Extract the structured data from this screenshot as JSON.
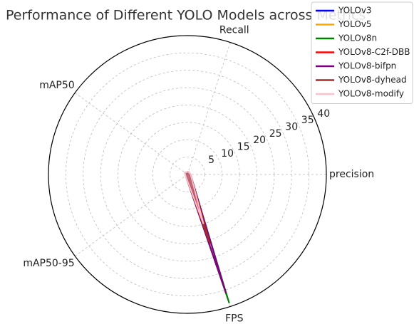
{
  "chart_data": {
    "type": "radar",
    "title": "Performance of Different YOLO Models across Metrics",
    "categories": [
      "precision",
      "Recall",
      "mAP50",
      "mAP50-95",
      "FPS"
    ],
    "ylim": [
      0,
      40
    ],
    "yticks": [
      5,
      10,
      15,
      20,
      25,
      30,
      35,
      40
    ],
    "grid": true,
    "legend": "upper right",
    "series": [
      {
        "name": "YOLOv3",
        "color": "#0000ff",
        "values": [
          0.85,
          0.78,
          0.82,
          0.55,
          10
        ]
      },
      {
        "name": "YOLOv5",
        "color": "#ffa500",
        "values": [
          0.87,
          0.8,
          0.84,
          0.58,
          12
        ]
      },
      {
        "name": "YOLOv8n",
        "color": "#008000",
        "values": [
          0.88,
          0.8,
          0.85,
          0.6,
          39
        ]
      },
      {
        "name": "YOLOv8-C2f-DBB",
        "color": "#ff0000",
        "values": [
          0.89,
          0.81,
          0.86,
          0.61,
          14
        ]
      },
      {
        "name": "YOLOv8-bifpn",
        "color": "#800080",
        "values": [
          0.9,
          0.82,
          0.87,
          0.62,
          36
        ]
      },
      {
        "name": "YOLOv8-dyhead",
        "color": "#a52a2a",
        "values": [
          0.9,
          0.83,
          0.87,
          0.63,
          21
        ]
      },
      {
        "name": "YOLOv8-modify",
        "color": "#ffc0cb",
        "values": [
          0.92,
          0.85,
          0.89,
          0.65,
          15
        ]
      }
    ]
  }
}
